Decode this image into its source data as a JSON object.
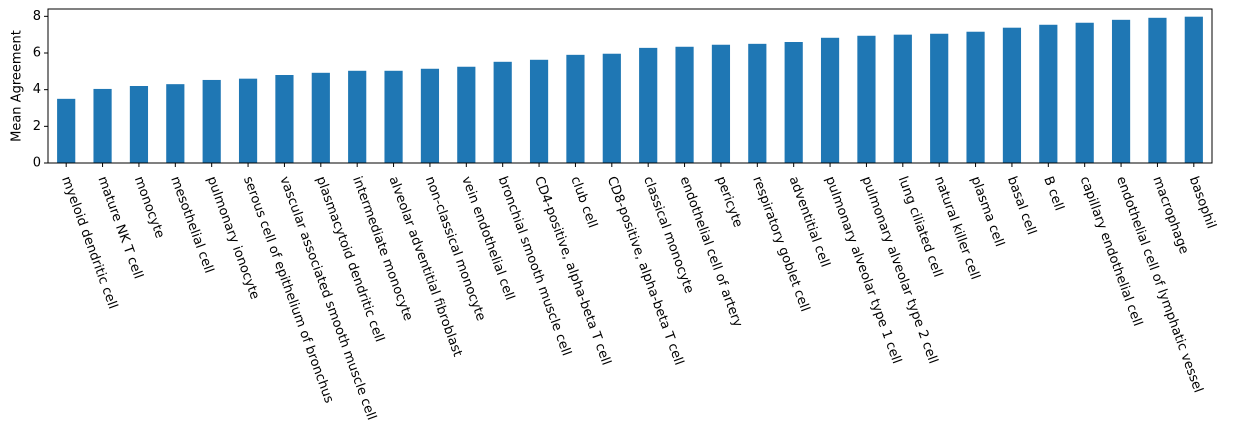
{
  "chart_data": {
    "type": "bar",
    "ylabel": "Mean Agreement",
    "categories": [
      "myeloid dendritic cell",
      "mature NK T cell",
      "monocyte",
      "mesothelial cell",
      "pulmonary ionocyte",
      "serous cell of epithelium of bronchus",
      "vascular associated smooth muscle cell",
      "plasmacytoid dendritic cell",
      "intermediate monocyte",
      "alveolar adventitial fibroblast",
      "non-classical monocyte",
      "vein endothelial cell",
      "bronchial smooth muscle cell",
      "CD4-positive, alpha-beta T cell",
      "club cell",
      "CD8-positive, alpha-beta T cell",
      "classical monocyte",
      "endothelial cell of artery",
      "pericyte",
      "respiratory goblet cell",
      "adventitial cell",
      "pulmonary alveolar type 1 cell",
      "pulmonary alveolar type 2 cell",
      "lung ciliated cell",
      "natural killer cell",
      "plasma cell",
      "basal cell",
      "B cell",
      "capillary endothelial cell",
      "endothelial cell of lymphatic vessel",
      "macrophage",
      "basophil"
    ],
    "values": [
      3.5,
      4.04,
      4.2,
      4.3,
      4.53,
      4.6,
      4.8,
      4.92,
      5.03,
      5.03,
      5.14,
      5.25,
      5.52,
      5.63,
      5.9,
      5.96,
      6.28,
      6.34,
      6.45,
      6.5,
      6.6,
      6.83,
      6.94,
      7.0,
      7.05,
      7.16,
      7.38,
      7.54,
      7.65,
      7.81,
      7.92,
      7.98
    ],
    "color": "#1f77b4",
    "ylim": [
      0,
      8.4
    ],
    "yticks": [
      0,
      2,
      4,
      6,
      8
    ],
    "grid": false
  }
}
